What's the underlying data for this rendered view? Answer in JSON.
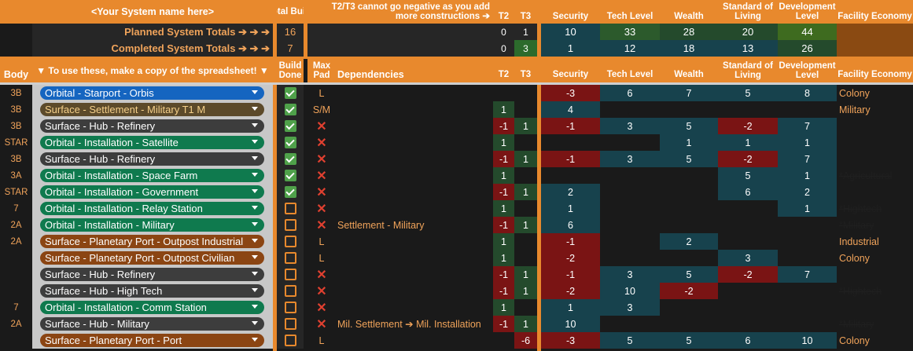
{
  "header": {
    "system_name": "<Your System name here>",
    "total_build": "Total Build",
    "t2t3_note": "T2/T3 cannot go negative as you add more constructions ➔",
    "t2": "T2",
    "t3": "T3",
    "security": "Security",
    "tech_level": "Tech Level",
    "wealth": "Wealth",
    "standard_of_living": "Standard of Living",
    "development_level": "Development Level",
    "facility_economy": "Facility Economy"
  },
  "planned": {
    "label": "Planned System Totals ➔ ➔ ➔",
    "total": "16",
    "t2": "0",
    "t3": "1",
    "security": "10",
    "tech": "33",
    "wealth": "28",
    "sol": "20",
    "dev": "44"
  },
  "completed": {
    "label": "Completed System Totals ➔ ➔ ➔",
    "total": "7",
    "t2": "0",
    "t3": "3",
    "security": "1",
    "tech": "12",
    "wealth": "18",
    "sol": "13",
    "dev": "26"
  },
  "subheader": {
    "body": "Body",
    "copy_note": "▼ To use these, make a copy of the spreadsheet! ▼",
    "build_done": "Build Done",
    "max_pad": "Max Pad",
    "dependencies": "Dependencies",
    "t2": "T2",
    "t3": "T3",
    "security": "Security",
    "tech_level": "Tech Level",
    "wealth": "Wealth",
    "standard_of_living": "Standard of Living",
    "development_level": "Development Level",
    "facility_economy": "Facility Economy"
  },
  "colors": {
    "orange": "#e8892d",
    "blue": "#1565c0",
    "green": "#0f7a4e",
    "gray": "#3d3d3d",
    "brown": "#8b4513",
    "olive": "#5c4a2a"
  },
  "rows": [
    {
      "body": "3B",
      "facility": "Orbital - Starport - Orbis",
      "chip": "blue",
      "done": true,
      "pad": "L",
      "pad_type": "text",
      "dep": "",
      "t2": "",
      "t3": "",
      "sec": "-3",
      "tech": "6",
      "wealth": "7",
      "sol": "5",
      "dev": "8",
      "econ": "Colony",
      "econ_strike": false
    },
    {
      "body": "3B",
      "facility": "Surface - Settlement - Military T1 M",
      "chip": "olive",
      "done": true,
      "pad": "S/M",
      "pad_type": "text",
      "dep": "",
      "t2": "1",
      "t3": "",
      "sec": "4",
      "tech": "",
      "wealth": "",
      "sol": "",
      "dev": "",
      "econ": "Military",
      "econ_strike": false
    },
    {
      "body": "3B",
      "facility": "Surface - Hub - Refinery",
      "chip": "gray",
      "done": true,
      "pad": "",
      "pad_type": "x",
      "dep": "",
      "t2": "-1",
      "t3": "1",
      "sec": "-1",
      "tech": "3",
      "wealth": "5",
      "sol": "-2",
      "dev": "7",
      "econ": "",
      "econ_strike": false
    },
    {
      "body": "STAR",
      "facility": "Orbital - Installation - Satellite",
      "chip": "green",
      "done": true,
      "pad": "",
      "pad_type": "x",
      "dep": "",
      "t2": "1",
      "t3": "",
      "sec": "",
      "tech": "",
      "wealth": "1",
      "sol": "1",
      "dev": "1",
      "econ": "",
      "econ_strike": false
    },
    {
      "body": "3B",
      "facility": "Surface - Hub - Refinery",
      "chip": "gray",
      "done": true,
      "pad": "",
      "pad_type": "x",
      "dep": "",
      "t2": "-1",
      "t3": "1",
      "sec": "-1",
      "tech": "3",
      "wealth": "5",
      "sol": "-2",
      "dev": "7",
      "econ": "",
      "econ_strike": false
    },
    {
      "body": "3A",
      "facility": "Orbital - Installation - Space Farm",
      "chip": "green",
      "done": true,
      "pad": "",
      "pad_type": "x",
      "dep": "",
      "t2": "1",
      "t3": "",
      "sec": "",
      "tech": "",
      "wealth": "",
      "sol": "5",
      "dev": "1",
      "econ": "*Agricultural",
      "econ_strike": true
    },
    {
      "body": "STAR",
      "facility": "Orbital - Installation - Government",
      "chip": "green",
      "done": true,
      "pad": "",
      "pad_type": "x",
      "dep": "",
      "t2": "-1",
      "t3": "1",
      "sec": "2",
      "tech": "",
      "wealth": "",
      "sol": "6",
      "dev": "2",
      "econ": "",
      "econ_strike": false
    },
    {
      "body": "7",
      "facility": "Orbital - Installation - Relay Station",
      "chip": "green",
      "done": false,
      "pad": "",
      "pad_type": "x",
      "dep": "",
      "t2": "1",
      "t3": "",
      "sec": "1",
      "tech": "",
      "wealth": "",
      "sol": "",
      "dev": "1",
      "econ": "*Hightech",
      "econ_strike": true
    },
    {
      "body": "2A",
      "facility": "Orbital - Installation - Military",
      "chip": "green",
      "done": false,
      "pad": "",
      "pad_type": "x",
      "dep": "Settlement - Military",
      "t2": "-1",
      "t3": "1",
      "sec": "6",
      "tech": "",
      "wealth": "",
      "sol": "",
      "dev": "",
      "econ": "*Military",
      "econ_strike": true
    },
    {
      "body": "2A",
      "facility": "Surface - Planetary Port - Outpost Industrial",
      "chip": "brown",
      "done": false,
      "pad": "L",
      "pad_type": "text",
      "dep": "",
      "t2": "1",
      "t3": "",
      "sec": "-1",
      "tech": "",
      "wealth": "2",
      "sol": "",
      "dev": "",
      "econ": "Industrial",
      "econ_strike": false
    },
    {
      "body": "",
      "facility": "Surface - Planetary Port - Outpost Civilian",
      "chip": "brown",
      "done": false,
      "pad": "L",
      "pad_type": "text",
      "dep": "",
      "t2": "1",
      "t3": "",
      "sec": "-2",
      "tech": "",
      "wealth": "",
      "sol": "3",
      "dev": "",
      "econ": "Colony",
      "econ_strike": false
    },
    {
      "body": "",
      "facility": "Surface - Hub - Refinery",
      "chip": "gray",
      "done": false,
      "pad": "",
      "pad_type": "x",
      "dep": "",
      "t2": "-1",
      "t3": "1",
      "sec": "-1",
      "tech": "3",
      "wealth": "5",
      "sol": "-2",
      "dev": "7",
      "econ": "",
      "econ_strike": false
    },
    {
      "body": "",
      "facility": "Surface - Hub - High Tech",
      "chip": "gray",
      "done": false,
      "pad": "",
      "pad_type": "x",
      "dep": "",
      "t2": "-1",
      "t3": "1",
      "sec": "-2",
      "tech": "10",
      "wealth": "-2",
      "sol": "",
      "dev": "",
      "econ": "*Hightech",
      "econ_strike": true
    },
    {
      "body": "7",
      "facility": "Orbital - Installation - Comm Station",
      "chip": "green",
      "done": false,
      "pad": "",
      "pad_type": "x",
      "dep": "",
      "t2": "1",
      "t3": "",
      "sec": "1",
      "tech": "3",
      "wealth": "",
      "sol": "",
      "dev": "",
      "econ": "",
      "econ_strike": false
    },
    {
      "body": "2A",
      "facility": "Surface - Hub - Military",
      "chip": "gray",
      "done": false,
      "pad": "",
      "pad_type": "x",
      "dep": "Mil. Settlement ➔ Mil. Installation",
      "t2": "-1",
      "t3": "1",
      "sec": "10",
      "tech": "",
      "wealth": "",
      "sol": "",
      "dev": "",
      "econ": "*Military",
      "econ_strike": true
    },
    {
      "body": "",
      "facility": "Surface - Planetary Port - Port",
      "chip": "brown",
      "done": false,
      "pad": "L",
      "pad_type": "text",
      "dep": "",
      "t2": "",
      "t3": "-6",
      "sec": "-3",
      "tech": "5",
      "wealth": "5",
      "sol": "6",
      "dev": "10",
      "econ": "Colony",
      "econ_strike": false
    }
  ]
}
